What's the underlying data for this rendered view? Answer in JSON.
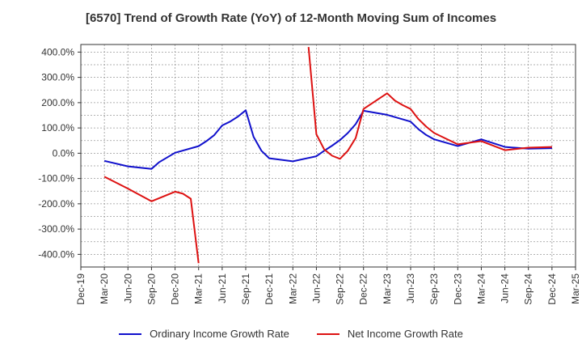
{
  "chart_data": {
    "type": "line",
    "title": "[6570]  Trend of Growth Rate (YoY) of 12-Month Moving Sum of Incomes",
    "xlabel": "",
    "ylabel": "",
    "x_ticks": [
      "Dec-19",
      "Mar-20",
      "Jun-20",
      "Sep-20",
      "Dec-20",
      "Mar-21",
      "Jun-21",
      "Sep-21",
      "Dec-21",
      "Mar-22",
      "Jun-22",
      "Sep-22",
      "Dec-22",
      "Mar-23",
      "Jun-23",
      "Sep-23",
      "Dec-23",
      "Mar-24",
      "Jun-24",
      "Sep-24",
      "Dec-24",
      "Mar-25"
    ],
    "y_ticks": [
      "400.0%",
      "300.0%",
      "200.0%",
      "100.0%",
      "0.0%",
      "-100.0%",
      "-200.0%",
      "-300.0%",
      "-400.0%"
    ],
    "y_tick_values": [
      400,
      300,
      200,
      100,
      0,
      -100,
      -200,
      -300,
      -400
    ],
    "ylim": [
      -450,
      430
    ],
    "grid": true,
    "legend_position": "bottom",
    "series": [
      {
        "name": "Ordinary Income Growth Rate",
        "color": "#1010cc",
        "points": [
          [
            "Mar-20",
            -30
          ],
          [
            "Jun-20",
            -52
          ],
          [
            "Sep-20",
            -62
          ],
          [
            "Oct-20",
            -35
          ],
          [
            "Dec-20",
            2
          ],
          [
            "Mar-21",
            28
          ],
          [
            "Apr-21",
            48
          ],
          [
            "May-21",
            72
          ],
          [
            "Jun-21",
            110
          ],
          [
            "Jul-21",
            125
          ],
          [
            "Aug-21",
            145
          ],
          [
            "Sep-21",
            170
          ],
          [
            "Oct-21",
            65
          ],
          [
            "Nov-21",
            10
          ],
          [
            "Dec-21",
            -20
          ],
          [
            "Mar-22",
            -32
          ],
          [
            "Jun-22",
            -12
          ],
          [
            "Jul-22",
            10
          ],
          [
            "Aug-22",
            30
          ],
          [
            "Sep-22",
            52
          ],
          [
            "Oct-22",
            80
          ],
          [
            "Nov-22",
            115
          ],
          [
            "Dec-22",
            168
          ],
          [
            "Mar-23",
            152
          ],
          [
            "Jun-23",
            125
          ],
          [
            "Jul-23",
            95
          ],
          [
            "Aug-23",
            72
          ],
          [
            "Sep-23",
            55
          ],
          [
            "Dec-23",
            28
          ],
          [
            "Mar-24",
            55
          ],
          [
            "Jun-24",
            25
          ],
          [
            "Sep-24",
            18
          ],
          [
            "Dec-24",
            20
          ]
        ]
      },
      {
        "name": "Net Income Growth Rate",
        "color": "#dd1111",
        "segments": [
          [
            [
              "Mar-20",
              -93
            ],
            [
              "Jun-20",
              -140
            ],
            [
              "Sep-20",
              -190
            ],
            [
              "Dec-20",
              -152
            ],
            [
              "Jan-21",
              -160
            ],
            [
              "Feb-21",
              -180
            ],
            [
              "Mar-21",
              -435
            ]
          ],
          [
            [
              "May-22",
              420
            ],
            [
              "Jun-22",
              75
            ],
            [
              "Jul-22",
              15
            ],
            [
              "Aug-22",
              -10
            ],
            [
              "Sep-22",
              -22
            ],
            [
              "Oct-22",
              10
            ],
            [
              "Nov-22",
              60
            ],
            [
              "Dec-22",
              175
            ],
            [
              "Mar-23",
              237
            ],
            [
              "Apr-23",
              208
            ],
            [
              "May-23",
              190
            ],
            [
              "Jun-23",
              175
            ],
            [
              "Jul-23",
              135
            ],
            [
              "Aug-23",
              105
            ],
            [
              "Sep-23",
              80
            ],
            [
              "Dec-23",
              35
            ],
            [
              "Mar-24",
              48
            ],
            [
              "Jun-24",
              12
            ],
            [
              "Sep-24",
              22
            ],
            [
              "Dec-24",
              25
            ]
          ]
        ]
      }
    ]
  }
}
